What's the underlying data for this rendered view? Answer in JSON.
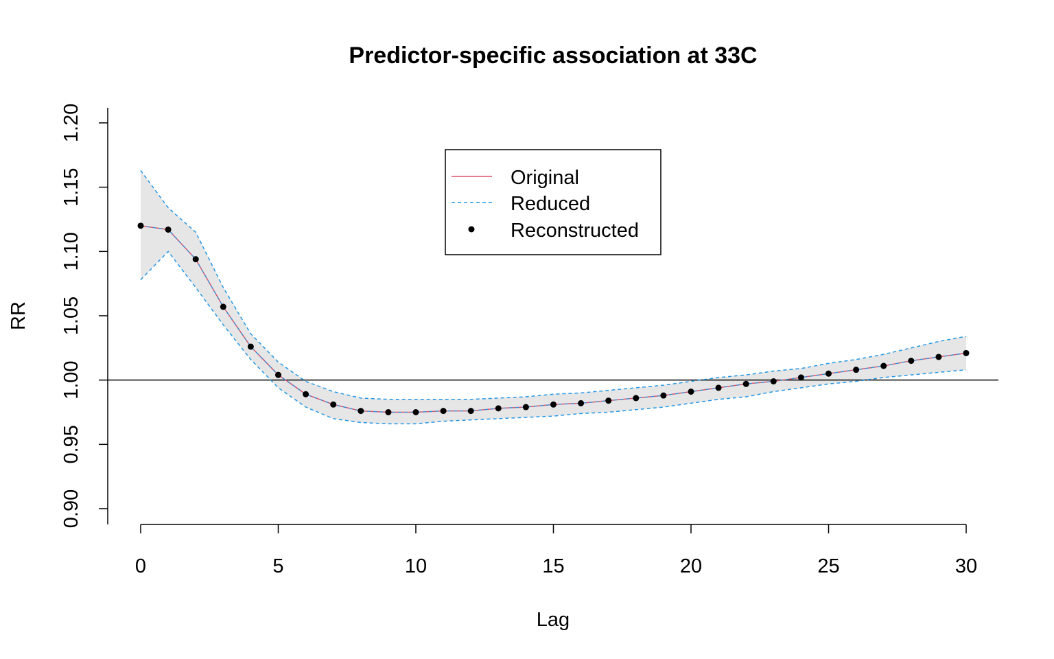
{
  "chart_data": {
    "type": "line",
    "title": "Predictor-specific association at 33C",
    "xlabel": "Lag",
    "ylabel": "RR",
    "xlim": [
      0,
      30
    ],
    "ylim": [
      0.9,
      1.2
    ],
    "x_ticks": [
      0,
      5,
      10,
      15,
      20,
      25,
      30
    ],
    "x_tick_labels": [
      "0",
      "5",
      "10",
      "15",
      "20",
      "25",
      "30"
    ],
    "y_ticks": [
      0.9,
      0.95,
      1.0,
      1.05,
      1.1,
      1.15,
      1.2
    ],
    "y_tick_labels": [
      "0.90",
      "0.95",
      "1.00",
      "1.05",
      "1.10",
      "1.15",
      "1.20"
    ],
    "reference_line": 1.0,
    "grid": false,
    "legend_position": "top-center",
    "colors": {
      "original": "#DF536B",
      "reduced": "#2297E6",
      "reconstructed": "#000000",
      "band": "#E6E6E6"
    },
    "x": [
      0,
      1,
      2,
      3,
      4,
      5,
      6,
      7,
      8,
      9,
      10,
      11,
      12,
      13,
      14,
      15,
      16,
      17,
      18,
      19,
      20,
      21,
      22,
      23,
      24,
      25,
      26,
      27,
      28,
      29,
      30
    ],
    "series": [
      {
        "name": "Original",
        "style": "solid-line",
        "values": [
          1.12,
          1.117,
          1.094,
          1.057,
          1.026,
          1.004,
          0.989,
          0.981,
          0.976,
          0.975,
          0.975,
          0.976,
          0.976,
          0.978,
          0.979,
          0.981,
          0.982,
          0.984,
          0.986,
          0.988,
          0.991,
          0.994,
          0.997,
          0.999,
          1.002,
          1.005,
          1.008,
          1.011,
          1.015,
          1.018,
          1.021
        ]
      },
      {
        "name": "Reduced",
        "style": "dashed-line",
        "lower": [
          1.078,
          1.1,
          1.072,
          1.043,
          1.016,
          0.994,
          0.979,
          0.97,
          0.967,
          0.966,
          0.966,
          0.968,
          0.969,
          0.97,
          0.971,
          0.972,
          0.974,
          0.975,
          0.977,
          0.979,
          0.982,
          0.985,
          0.987,
          0.991,
          0.994,
          0.997,
          0.999,
          1.002,
          1.004,
          1.006,
          1.008
        ],
        "upper": [
          1.163,
          1.134,
          1.115,
          1.072,
          1.036,
          1.014,
          0.999,
          0.991,
          0.986,
          0.985,
          0.985,
          0.985,
          0.985,
          0.986,
          0.987,
          0.989,
          0.99,
          0.992,
          0.994,
          0.996,
          0.999,
          1.002,
          1.004,
          1.007,
          1.009,
          1.013,
          1.016,
          1.02,
          1.025,
          1.03,
          1.034
        ]
      },
      {
        "name": "Reconstructed",
        "style": "points",
        "values": [
          1.12,
          1.117,
          1.094,
          1.057,
          1.026,
          1.004,
          0.989,
          0.981,
          0.976,
          0.975,
          0.975,
          0.976,
          0.976,
          0.978,
          0.979,
          0.981,
          0.982,
          0.984,
          0.986,
          0.988,
          0.991,
          0.994,
          0.997,
          0.999,
          1.002,
          1.005,
          1.008,
          1.011,
          1.015,
          1.018,
          1.021
        ]
      }
    ]
  }
}
